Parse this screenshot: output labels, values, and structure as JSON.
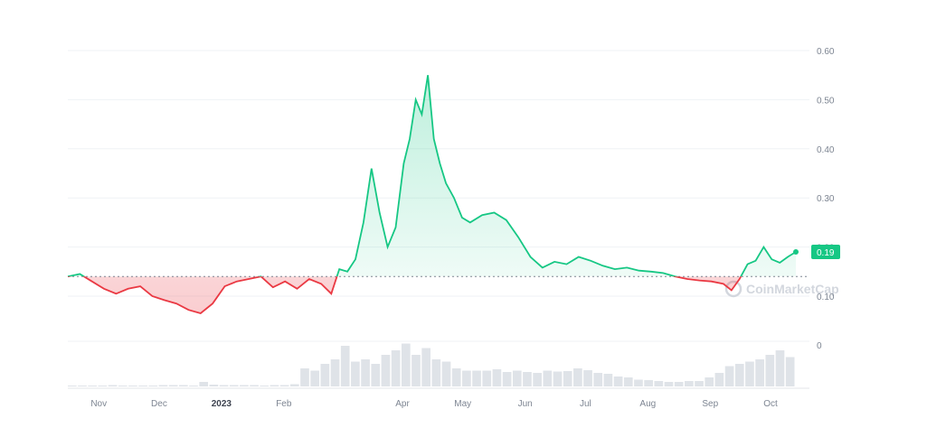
{
  "chart_data": {
    "type": "line",
    "title": "",
    "xlabel": "",
    "ylabel": "",
    "ylim": [
      0.05,
      0.6
    ],
    "y_ticks": [
      "0.60",
      "0.50",
      "0.40",
      "0.30",
      "0.20",
      "0.10"
    ],
    "x_ticks": [
      "Nov",
      "Dec",
      "2023",
      "Feb",
      "Apr",
      "May",
      "Jun",
      "Jul",
      "Aug",
      "Sep",
      "Oct"
    ],
    "baseline": 0.14,
    "last_value_label": "0.19",
    "volume_axis_label": "0",
    "watermark": "CoinMarketCap",
    "colors": {
      "up": "#16c784",
      "down": "#ea3943",
      "grid": "#eff2f5"
    },
    "grid": true,
    "series": [
      {
        "x": [
          "2022-10-22",
          "2022-10-28",
          "2022-11-03",
          "2022-11-09",
          "2022-11-15",
          "2022-11-21",
          "2022-11-27",
          "2022-12-03",
          "2022-12-09",
          "2022-12-15",
          "2022-12-21",
          "2022-12-27",
          "2023-01-02",
          "2023-01-08",
          "2023-01-14",
          "2023-01-20",
          "2023-01-26",
          "2023-02-01",
          "2023-02-07",
          "2023-02-13",
          "2023-02-19",
          "2023-02-25",
          "2023-03-02",
          "2023-03-06",
          "2023-03-10",
          "2023-03-14",
          "2023-03-18",
          "2023-03-22",
          "2023-03-26",
          "2023-03-30",
          "2023-04-03",
          "2023-04-07",
          "2023-04-10",
          "2023-04-13",
          "2023-04-16",
          "2023-04-19",
          "2023-04-22",
          "2023-04-25",
          "2023-04-28",
          "2023-05-02",
          "2023-05-06",
          "2023-05-10",
          "2023-05-16",
          "2023-05-22",
          "2023-05-28",
          "2023-06-03",
          "2023-06-09",
          "2023-06-15",
          "2023-06-21",
          "2023-06-27",
          "2023-07-03",
          "2023-07-09",
          "2023-07-15",
          "2023-07-21",
          "2023-07-27",
          "2023-08-02",
          "2023-08-08",
          "2023-08-14",
          "2023-08-20",
          "2023-08-26",
          "2023-09-01",
          "2023-09-07",
          "2023-09-13",
          "2023-09-17",
          "2023-09-21",
          "2023-09-25",
          "2023-09-29",
          "2023-10-03",
          "2023-10-07",
          "2023-10-11",
          "2023-10-15",
          "2023-10-19"
        ],
        "values": [
          0.14,
          0.145,
          0.13,
          0.115,
          0.105,
          0.115,
          0.12,
          0.1,
          0.092,
          0.085,
          0.072,
          0.065,
          0.085,
          0.12,
          0.13,
          0.135,
          0.14,
          0.118,
          0.13,
          0.115,
          0.135,
          0.125,
          0.105,
          0.155,
          0.15,
          0.175,
          0.25,
          0.36,
          0.27,
          0.2,
          0.24,
          0.37,
          0.42,
          0.5,
          0.47,
          0.55,
          0.42,
          0.37,
          0.33,
          0.3,
          0.26,
          0.25,
          0.265,
          0.27,
          0.255,
          0.22,
          0.18,
          0.158,
          0.17,
          0.165,
          0.18,
          0.172,
          0.162,
          0.155,
          0.158,
          0.152,
          0.15,
          0.147,
          0.14,
          0.135,
          0.132,
          0.13,
          0.125,
          0.112,
          0.135,
          0.165,
          0.172,
          0.2,
          0.175,
          0.168,
          0.18,
          0.19
        ]
      }
    ],
    "volume": [
      0.02,
      0.02,
      0.02,
      0.02,
      0.03,
      0.02,
      0.02,
      0.02,
      0.02,
      0.03,
      0.03,
      0.03,
      0.02,
      0.1,
      0.04,
      0.03,
      0.03,
      0.03,
      0.03,
      0.02,
      0.03,
      0.03,
      0.05,
      0.4,
      0.35,
      0.5,
      0.6,
      0.9,
      0.55,
      0.6,
      0.5,
      0.7,
      0.8,
      0.95,
      0.7,
      0.85,
      0.6,
      0.55,
      0.4,
      0.35,
      0.35,
      0.35,
      0.38,
      0.32,
      0.35,
      0.32,
      0.3,
      0.35,
      0.33,
      0.34,
      0.4,
      0.36,
      0.3,
      0.28,
      0.22,
      0.2,
      0.15,
      0.14,
      0.12,
      0.1,
      0.1,
      0.12,
      0.12,
      0.2,
      0.3,
      0.45,
      0.5,
      0.55,
      0.6,
      0.7,
      0.8,
      0.65
    ]
  }
}
